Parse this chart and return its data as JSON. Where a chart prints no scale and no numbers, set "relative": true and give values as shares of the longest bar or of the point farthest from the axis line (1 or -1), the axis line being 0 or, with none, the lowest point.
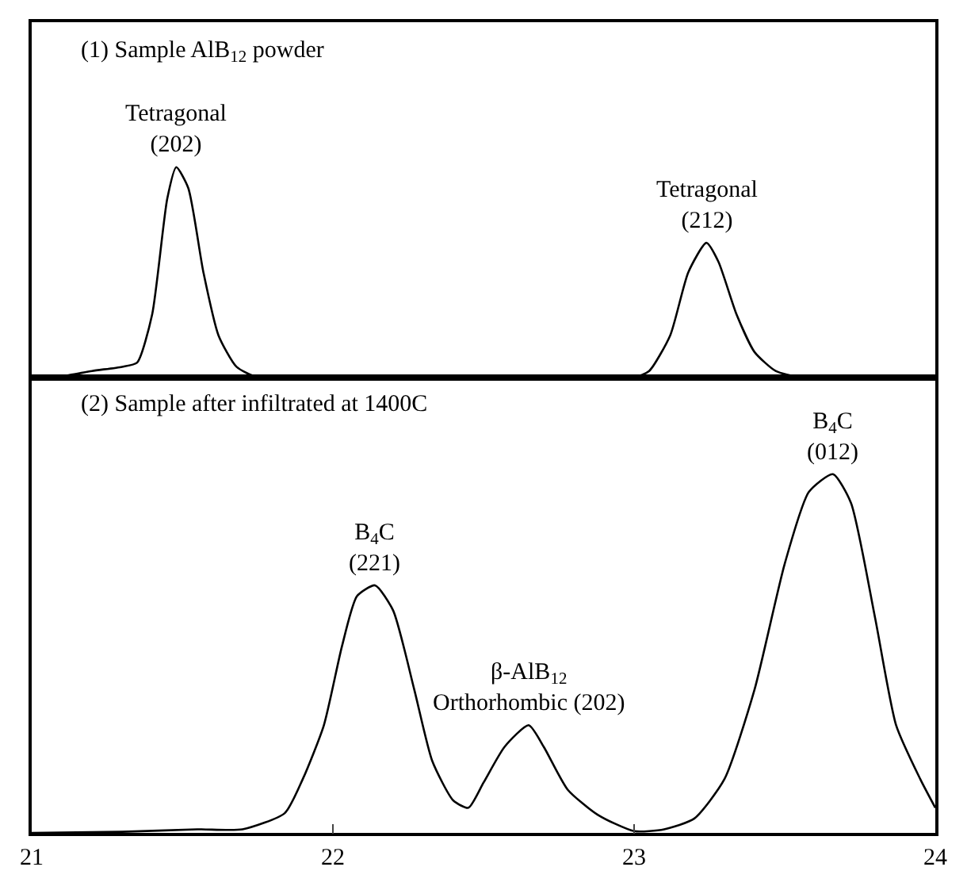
{
  "chart_data": [
    {
      "type": "line",
      "relative": true,
      "title": "(1) Sample AlB$_{12}$ powder",
      "xlim": [
        21,
        24
      ],
      "xticks": [
        21,
        22,
        23,
        24
      ],
      "tick_labels": false,
      "series": [
        {
          "color": "#000000",
          "x": [
            21.0,
            21.1,
            21.2,
            21.3,
            21.35,
            21.4,
            21.45,
            21.48,
            21.52,
            21.57,
            21.62,
            21.68,
            21.75,
            22.0,
            22.5,
            23.0,
            23.05,
            23.12,
            23.18,
            23.24,
            23.28,
            23.34,
            23.4,
            23.47,
            23.55,
            24.0
          ],
          "values": [
            0,
            0.005,
            0.03,
            0.05,
            0.07,
            0.3,
            0.85,
            1,
            0.9,
            0.5,
            0.2,
            0.05,
            0,
            0,
            0,
            0,
            0.03,
            0.2,
            0.5,
            0.64,
            0.55,
            0.3,
            0.12,
            0.03,
            0,
            0
          ]
        }
      ],
      "annotations": [
        {
          "text": "Tetragonal\n(202)",
          "x": 21.48,
          "y": 1
        },
        {
          "text": "Tetragonal\n(212)",
          "x": 23.24,
          "y": 0.64
        }
      ]
    },
    {
      "type": "line",
      "relative": true,
      "title": "(2) Sample after infiltrated at 1400C",
      "xlim": [
        21,
        24
      ],
      "xticks": [
        21,
        22,
        23,
        24
      ],
      "tick_labels": "x",
      "series": [
        {
          "color": "#000000",
          "x": [
            21.0,
            21.3,
            21.55,
            21.7,
            21.84,
            21.9,
            21.97,
            22.03,
            22.08,
            22.14,
            22.2,
            22.27,
            22.33,
            22.4,
            22.45,
            22.5,
            22.57,
            22.65,
            22.7,
            22.78,
            22.88,
            23.0,
            23.1,
            23.2,
            23.3,
            23.4,
            23.5,
            23.58,
            23.66,
            23.72,
            23.8,
            23.87,
            23.95,
            24.0
          ],
          "values": [
            0,
            0.003,
            0.01,
            0.01,
            0.055,
            0.15,
            0.3,
            0.52,
            0.66,
            0.69,
            0.62,
            0.4,
            0.2,
            0.09,
            0.07,
            0.14,
            0.24,
            0.3,
            0.24,
            0.12,
            0.05,
            0.005,
            0.01,
            0.04,
            0.15,
            0.4,
            0.75,
            0.95,
            1.0,
            0.92,
            0.6,
            0.3,
            0.15,
            0.07
          ]
        }
      ],
      "annotations": [
        {
          "text": "B$_{4}$C\n(221)",
          "x": 22.14,
          "y": 0.69
        },
        {
          "text": "β-AlB$_{12}$\nOrthorhombic (202)",
          "x": 22.65,
          "y": 0.3
        },
        {
          "text": "B$_{4}$C\n(012)",
          "x": 23.66,
          "y": 1.0
        }
      ]
    }
  ]
}
